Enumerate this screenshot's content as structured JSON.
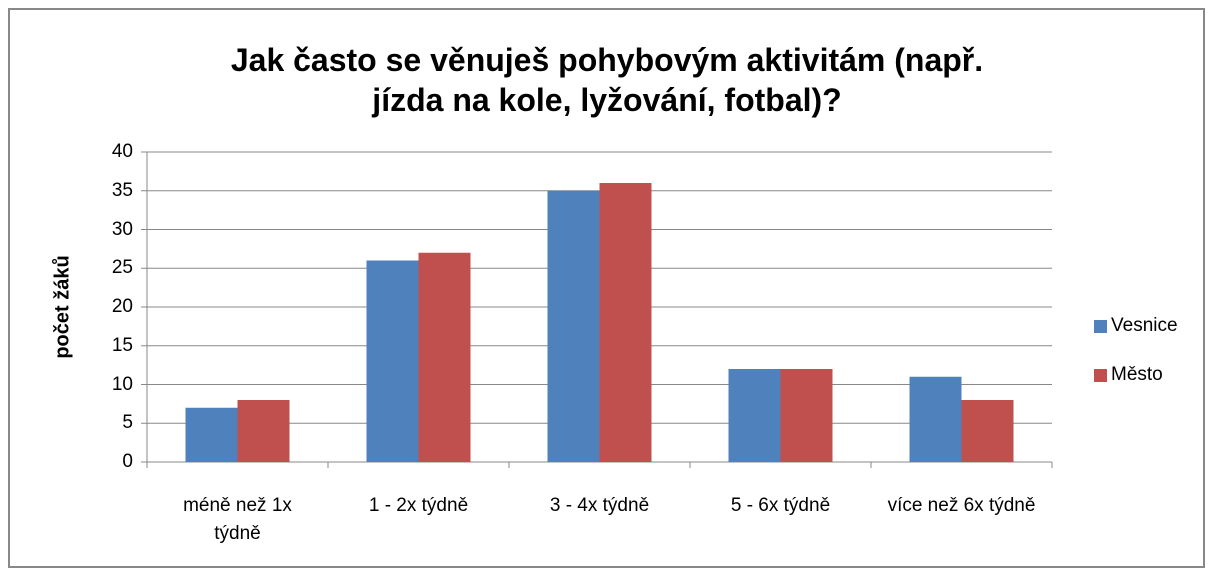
{
  "chart_data": {
    "type": "bar",
    "title": "Jak často se věnuješ pohybovým aktivitám (např. jízda na kole, lyžování, fotbal)?",
    "y_label": "počet žáků",
    "categories": [
      "méně než 1x týdně",
      "1 - 2x týdně",
      "3 - 4x týdně",
      "5 - 6x týdně",
      "více než 6x týdně"
    ],
    "series": [
      {
        "name": "Vesnice",
        "color": "#4f81bd",
        "values": [
          7,
          26,
          35,
          12,
          11
        ]
      },
      {
        "name": "Město",
        "color": "#c0504d",
        "values": [
          8,
          27,
          36,
          12,
          8
        ]
      }
    ],
    "ylim": [
      0,
      40
    ],
    "yticks": [
      0,
      5,
      10,
      15,
      20,
      25,
      30,
      35,
      40
    ],
    "grid": true,
    "legend": "right"
  }
}
